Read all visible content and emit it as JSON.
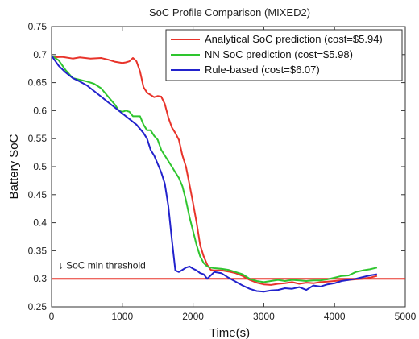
{
  "chart_data": {
    "type": "line",
    "title": "SoC Profile Comparison (MIXED2)",
    "xlabel": "Time(s)",
    "ylabel": "Battery SoC",
    "xlim": [
      0,
      5000
    ],
    "ylim": [
      0.25,
      0.75
    ],
    "xticks": [
      0,
      1000,
      2000,
      3000,
      4000,
      5000
    ],
    "yticks": [
      0.25,
      0.3,
      0.35,
      0.4,
      0.45,
      0.5,
      0.55,
      0.6,
      0.65,
      0.7,
      0.75
    ],
    "grid": false,
    "legend_position": "top-right",
    "annotation": {
      "text": "↓ SoC min threshold",
      "x": 100,
      "y": 0.318
    },
    "threshold": {
      "value": 0.3,
      "color": "#e8332a"
    },
    "series": [
      {
        "name": "Analytical SoC prediction (cost=$5.94)",
        "color": "#e8332a",
        "x": [
          0,
          150,
          300,
          400,
          550,
          700,
          800,
          900,
          1000,
          1050,
          1100,
          1150,
          1200,
          1250,
          1300,
          1350,
          1400,
          1450,
          1500,
          1550,
          1600,
          1650,
          1700,
          1750,
          1800,
          1850,
          1900,
          1950,
          2000,
          2050,
          2100,
          2150,
          2200,
          2250,
          2300,
          2400,
          2500,
          2600,
          2700,
          2800,
          2900,
          3000,
          3100,
          3200,
          3300,
          3400,
          3500,
          3600,
          3700,
          3800,
          3900,
          4000,
          4100,
          4200,
          4300,
          4400,
          4500,
          4600
        ],
        "y": [
          0.695,
          0.696,
          0.693,
          0.695,
          0.693,
          0.694,
          0.691,
          0.687,
          0.685,
          0.686,
          0.688,
          0.694,
          0.688,
          0.67,
          0.642,
          0.632,
          0.628,
          0.624,
          0.626,
          0.625,
          0.612,
          0.588,
          0.57,
          0.56,
          0.548,
          0.52,
          0.5,
          0.468,
          0.435,
          0.4,
          0.36,
          0.34,
          0.325,
          0.316,
          0.315,
          0.315,
          0.313,
          0.31,
          0.305,
          0.298,
          0.293,
          0.29,
          0.289,
          0.291,
          0.292,
          0.294,
          0.291,
          0.293,
          0.292,
          0.294,
          0.295,
          0.296,
          0.297,
          0.298,
          0.299,
          0.3,
          0.302,
          0.305
        ]
      },
      {
        "name": "NN SoC prediction (cost=$5.98)",
        "color": "#2ec52e",
        "x": [
          0,
          100,
          200,
          300,
          400,
          500,
          600,
          700,
          800,
          900,
          950,
          1000,
          1050,
          1100,
          1150,
          1200,
          1250,
          1300,
          1350,
          1400,
          1450,
          1500,
          1550,
          1600,
          1650,
          1700,
          1750,
          1800,
          1850,
          1900,
          1950,
          2000,
          2050,
          2100,
          2150,
          2200,
          2250,
          2300,
          2400,
          2500,
          2600,
          2700,
          2800,
          2900,
          3000,
          3100,
          3200,
          3300,
          3400,
          3500,
          3600,
          3700,
          3800,
          3900,
          4000,
          4100,
          4200,
          4300,
          4400,
          4500,
          4600
        ],
        "y": [
          0.698,
          0.69,
          0.672,
          0.658,
          0.655,
          0.652,
          0.648,
          0.64,
          0.625,
          0.61,
          0.6,
          0.598,
          0.6,
          0.598,
          0.59,
          0.59,
          0.59,
          0.575,
          0.565,
          0.565,
          0.555,
          0.548,
          0.53,
          0.52,
          0.51,
          0.5,
          0.49,
          0.48,
          0.465,
          0.44,
          0.41,
          0.385,
          0.36,
          0.34,
          0.328,
          0.322,
          0.32,
          0.319,
          0.318,
          0.316,
          0.312,
          0.308,
          0.3,
          0.296,
          0.294,
          0.296,
          0.298,
          0.296,
          0.298,
          0.297,
          0.296,
          0.297,
          0.297,
          0.299,
          0.302,
          0.305,
          0.306,
          0.312,
          0.315,
          0.317,
          0.32
        ]
      },
      {
        "name": "Rule-based (cost=$6.07)",
        "color": "#2222cc",
        "x": [
          0,
          100,
          200,
          300,
          400,
          500,
          600,
          700,
          800,
          900,
          1000,
          1100,
          1200,
          1300,
          1350,
          1400,
          1450,
          1500,
          1550,
          1600,
          1650,
          1700,
          1750,
          1800,
          1850,
          1900,
          1950,
          2000,
          2050,
          2100,
          2150,
          2200,
          2250,
          2300,
          2400,
          2500,
          2600,
          2700,
          2800,
          2900,
          3000,
          3100,
          3200,
          3300,
          3400,
          3500,
          3600,
          3700,
          3800,
          3900,
          4000,
          4100,
          4200,
          4300,
          4400,
          4500,
          4600
        ],
        "y": [
          0.698,
          0.68,
          0.668,
          0.658,
          0.652,
          0.645,
          0.635,
          0.625,
          0.615,
          0.605,
          0.595,
          0.585,
          0.575,
          0.56,
          0.55,
          0.53,
          0.52,
          0.505,
          0.49,
          0.47,
          0.43,
          0.37,
          0.315,
          0.312,
          0.316,
          0.32,
          0.322,
          0.318,
          0.315,
          0.31,
          0.308,
          0.3,
          0.306,
          0.312,
          0.31,
          0.302,
          0.295,
          0.288,
          0.282,
          0.278,
          0.277,
          0.279,
          0.28,
          0.283,
          0.282,
          0.285,
          0.28,
          0.288,
          0.286,
          0.29,
          0.292,
          0.296,
          0.298,
          0.3,
          0.303,
          0.306,
          0.308
        ]
      }
    ]
  }
}
